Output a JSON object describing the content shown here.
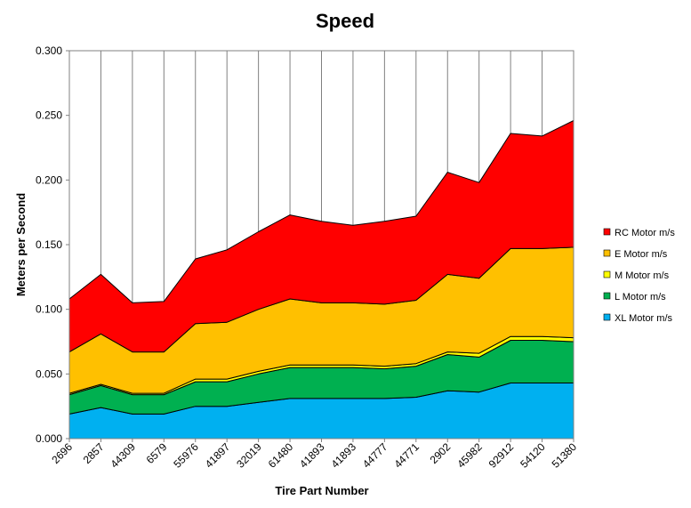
{
  "chart_data": {
    "type": "area",
    "stacked": true,
    "title": "Speed",
    "xlabel": "Tire Part Number",
    "ylabel": "Meters per Second",
    "ylim": [
      0,
      0.3
    ],
    "yticks": [
      "0.000",
      "0.050",
      "0.100",
      "0.150",
      "0.200",
      "0.250",
      "0.300"
    ],
    "grid": "vertical",
    "legend_position": "right",
    "categories": [
      "2696",
      "2857",
      "44309",
      "6579",
      "55976",
      "41897",
      "32019",
      "61480",
      "41893",
      "41893",
      "44777",
      "44771",
      "2902",
      "45982",
      "92912",
      "54120",
      "51380"
    ],
    "series": [
      {
        "name": "XL Motor m/s",
        "color": "#00B0F0",
        "values": [
          0.019,
          0.024,
          0.019,
          0.019,
          0.025,
          0.025,
          0.028,
          0.031,
          0.031,
          0.031,
          0.031,
          0.032,
          0.037,
          0.036,
          0.043,
          0.043,
          0.043
        ]
      },
      {
        "name": "L Motor m/s",
        "color": "#00B050",
        "values": [
          0.015,
          0.017,
          0.015,
          0.015,
          0.019,
          0.019,
          0.022,
          0.024,
          0.024,
          0.024,
          0.023,
          0.024,
          0.028,
          0.027,
          0.033,
          0.033,
          0.032
        ]
      },
      {
        "name": "M Motor m/s",
        "color": "#FFFF00",
        "values": [
          0.001,
          0.001,
          0.001,
          0.001,
          0.002,
          0.002,
          0.002,
          0.002,
          0.002,
          0.002,
          0.002,
          0.002,
          0.002,
          0.003,
          0.003,
          0.003,
          0.003
        ]
      },
      {
        "name": "E Motor m/s",
        "color": "#FFC000",
        "values": [
          0.032,
          0.039,
          0.032,
          0.032,
          0.043,
          0.044,
          0.048,
          0.051,
          0.048,
          0.048,
          0.048,
          0.049,
          0.06,
          0.058,
          0.068,
          0.068,
          0.07
        ]
      },
      {
        "name": "RC Motor  m/s",
        "color": "#FF0000",
        "values": [
          0.041,
          0.046,
          0.038,
          0.039,
          0.05,
          0.056,
          0.06,
          0.065,
          0.063,
          0.06,
          0.064,
          0.065,
          0.079,
          0.074,
          0.089,
          0.087,
          0.098
        ]
      }
    ]
  }
}
